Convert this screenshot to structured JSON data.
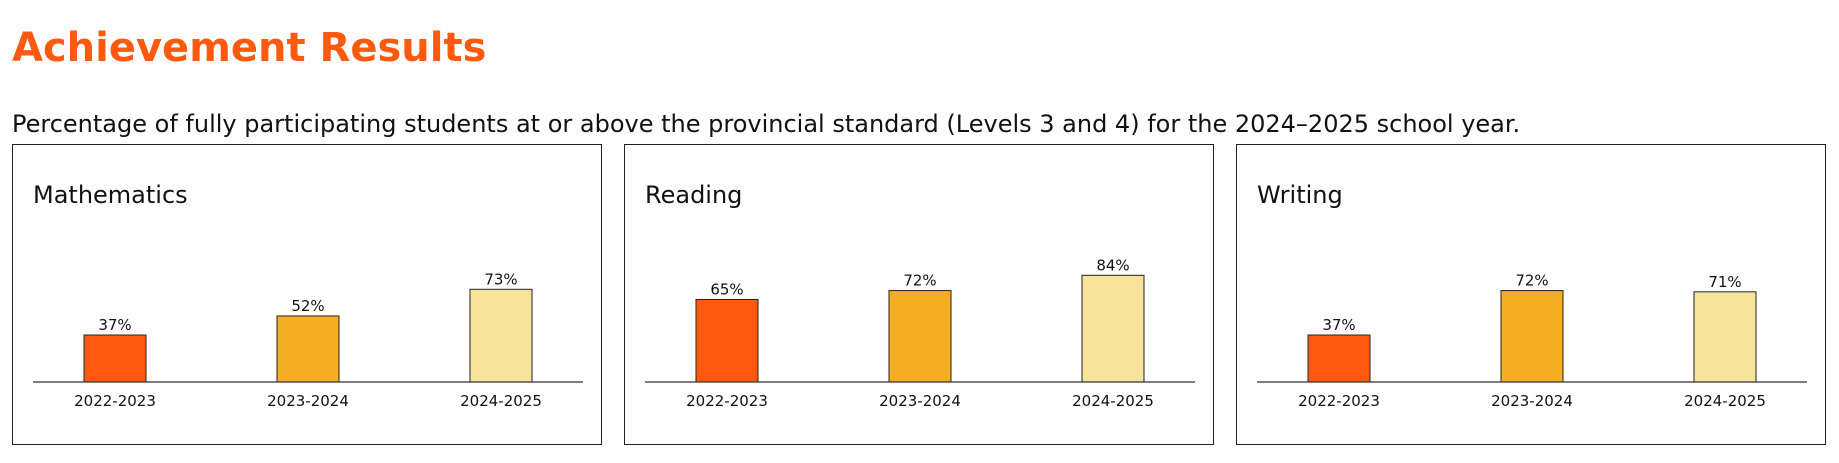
{
  "page": {
    "title": "Achievement Results",
    "subtitle": "Percentage of fully participating students at or above the provincial standard (Levels 3 and 4) for the 2024–2025 school year.",
    "title_color": "#FF5A0F"
  },
  "colors": {
    "2022-2023": "#FF5A0F",
    "2023-2024": "#F5AE22",
    "2024-2025": "#F8E39A",
    "bar_stroke": "#222222",
    "axis": "#333333"
  },
  "chart_data": [
    {
      "type": "bar",
      "title": "Mathematics",
      "categories": [
        "2022-2023",
        "2023-2024",
        "2024-2025"
      ],
      "values": [
        37,
        52,
        73
      ],
      "value_labels": [
        "37%",
        "52%",
        "73%"
      ],
      "unit": "%",
      "ylim": [
        0,
        100
      ],
      "xlabel": "",
      "ylabel": "",
      "grid": false
    },
    {
      "type": "bar",
      "title": "Reading",
      "categories": [
        "2022-2023",
        "2023-2024",
        "2024-2025"
      ],
      "values": [
        65,
        72,
        84
      ],
      "value_labels": [
        "65%",
        "72%",
        "84%"
      ],
      "unit": "%",
      "ylim": [
        0,
        100
      ],
      "xlabel": "",
      "ylabel": "",
      "grid": false
    },
    {
      "type": "bar",
      "title": "Writing",
      "categories": [
        "2022-2023",
        "2023-2024",
        "2024-2025"
      ],
      "values": [
        37,
        72,
        71
      ],
      "value_labels": [
        "37%",
        "72%",
        "71%"
      ],
      "unit": "%",
      "ylim": [
        0,
        100
      ],
      "xlabel": "",
      "ylabel": "",
      "grid": false
    }
  ]
}
